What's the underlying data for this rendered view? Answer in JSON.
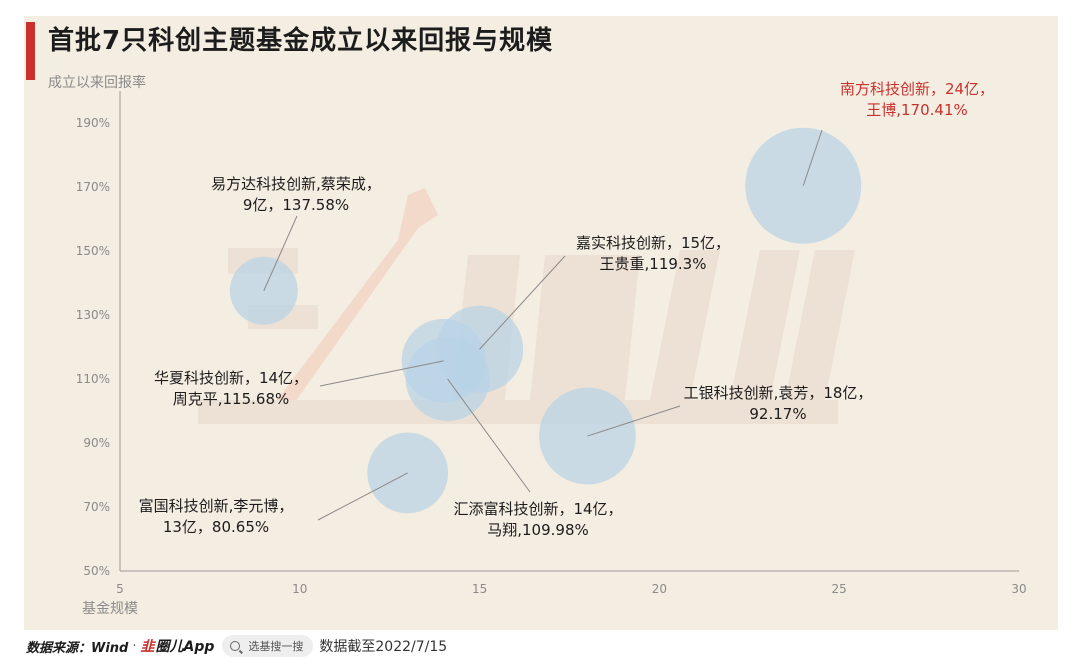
{
  "title": "首批7只科创主题基金成立以来回报与规模",
  "footer": {
    "source_label": "数据来源：Wind",
    "separator": "·",
    "brand_mark": "韭",
    "brand_text": "圈儿App",
    "search_placeholder": "选基搜一搜",
    "data_date": "数据截至2022/7/15"
  },
  "colors": {
    "accent": "#c8312c",
    "bubble": "#b9d3e6",
    "annotation_text": "#1c1c1c",
    "highlight_text": "#c8312c",
    "axis": "#9a9a9a",
    "tick_text": "#8a8a8a",
    "leader_line": "#8a8a8a",
    "watermark": "#e8d6c9"
  },
  "chart_data": {
    "type": "scatter",
    "title": "首批7只科创主题基金成立以来回报与规模",
    "xlabel": "基金规模",
    "ylabel": "成立以来回报率",
    "xlim": [
      5,
      30
    ],
    "ylim": [
      50,
      200
    ],
    "x_ticks": [
      5,
      10,
      15,
      20,
      25,
      30
    ],
    "y_ticks": [
      50,
      70,
      90,
      110,
      130,
      150,
      170,
      190
    ],
    "y_tick_format": "{v}%",
    "grid": false,
    "legend": "none",
    "points": [
      {
        "x": 24,
        "y": 170.41,
        "label": [
          "南方科技创新，24亿，",
          "王博,170.41%"
        ],
        "highlight": true
      },
      {
        "x": 9,
        "y": 137.58,
        "label": [
          "易方达科技创新,蔡荣成，",
          "9亿，137.58%"
        ],
        "highlight": false
      },
      {
        "x": 15,
        "y": 119.3,
        "label": [
          "嘉实科技创新，15亿，",
          "王贵重,119.3%"
        ],
        "highlight": false
      },
      {
        "x": 14,
        "y": 115.68,
        "label": [
          "华夏科技创新，14亿，",
          "周克平,115.68%"
        ],
        "highlight": false
      },
      {
        "x": 14,
        "y": 109.98,
        "label": [
          "汇添富科技创新，14亿，",
          "马翔,109.98%"
        ],
        "highlight": false
      },
      {
        "x": 18,
        "y": 92.17,
        "label": [
          "工银科技创新,袁芳，18亿，",
          "92.17%"
        ],
        "highlight": false
      },
      {
        "x": 13,
        "y": 80.65,
        "label": [
          "富国科技创新,李元博，",
          "13亿，80.65%"
        ],
        "highlight": false
      }
    ]
  }
}
